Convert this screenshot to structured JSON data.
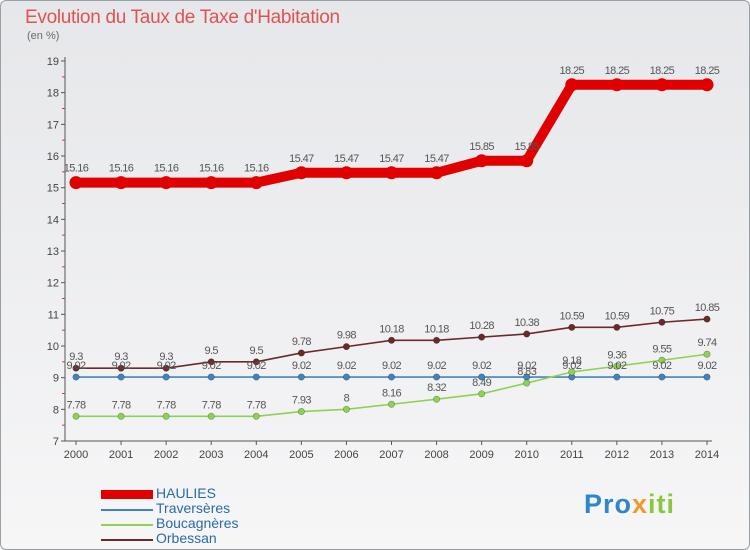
{
  "title": "Evolution du Taux de Taxe d'Habitation",
  "subtitle": "(en %)",
  "logo": {
    "part1": "Pro",
    "part2": "x",
    "part3": "iti"
  },
  "colors": {
    "title": "#e05353",
    "axis": "#555555",
    "legend_text": "#2b6aa6"
  },
  "chart_data": {
    "type": "line",
    "title": "Evolution du Taux de Taxe d'Habitation",
    "ylabel": "(en %)",
    "ylim": [
      7,
      19
    ],
    "grid": false,
    "legend_position": "bottom-left",
    "x": [
      2000,
      2001,
      2002,
      2003,
      2004,
      2005,
      2006,
      2007,
      2008,
      2009,
      2010,
      2011,
      2012,
      2013,
      2014
    ],
    "yticks": [
      7,
      8,
      9,
      10,
      11,
      12,
      13,
      14,
      15,
      16,
      17,
      18,
      19
    ],
    "series": [
      {
        "name": "HAULIES",
        "color": "#e00000",
        "thickness": "thick",
        "values": [
          15.16,
          15.16,
          15.16,
          15.16,
          15.16,
          15.47,
          15.47,
          15.47,
          15.47,
          15.85,
          15.85,
          18.25,
          18.25,
          18.25,
          18.25
        ],
        "labels": [
          "15.16",
          "15.16",
          "15.16",
          "15.16",
          "15.16",
          "15.47",
          "15.47",
          "15.47",
          "15.47",
          "15.85",
          "15.85",
          "18.25",
          "18.25",
          "18.25",
          "18.25"
        ]
      },
      {
        "name": "Traversères",
        "color": "#3f84c0",
        "thickness": "thin",
        "values": [
          9.02,
          9.02,
          9.02,
          9.02,
          9.02,
          9.02,
          9.02,
          9.02,
          9.02,
          9.02,
          9.02,
          9.02,
          9.02,
          9.02,
          9.02
        ],
        "labels": [
          "9.02",
          "9.02",
          "9.02",
          "9.02",
          "9.02",
          "9.02",
          "9.02",
          "9.02",
          "9.02",
          "9.02",
          "9.02",
          "9.02",
          "9.02",
          "9.02",
          "9.02"
        ]
      },
      {
        "name": "Boucagnères",
        "color": "#8fd253",
        "thickness": "thin",
        "values": [
          7.78,
          7.78,
          7.78,
          7.78,
          7.78,
          7.93,
          8,
          8.16,
          8.32,
          8.49,
          8.83,
          9.18,
          9.36,
          9.55,
          9.74
        ],
        "labels": [
          "7.78",
          "7.78",
          "7.78",
          "7.78",
          "7.78",
          "7.93",
          "8",
          "8.16",
          "8.32",
          "8.49",
          "8.83",
          "9.18",
          "9.36",
          "9.55",
          "9.74"
        ]
      },
      {
        "name": "Orbessan",
        "color": "#6b2a2a",
        "thickness": "thin",
        "values": [
          9.3,
          9.3,
          9.3,
          9.5,
          9.5,
          9.78,
          9.98,
          10.18,
          10.18,
          10.28,
          10.38,
          10.59,
          10.59,
          10.75,
          10.85
        ],
        "labels": [
          "9.3",
          "9.3",
          "9.3",
          "9.5",
          "9.5",
          "9.78",
          "9.98",
          "10.18",
          "10.18",
          "10.28",
          "10.38",
          "10.59",
          "10.59",
          "10.75",
          "10.85"
        ]
      }
    ]
  }
}
